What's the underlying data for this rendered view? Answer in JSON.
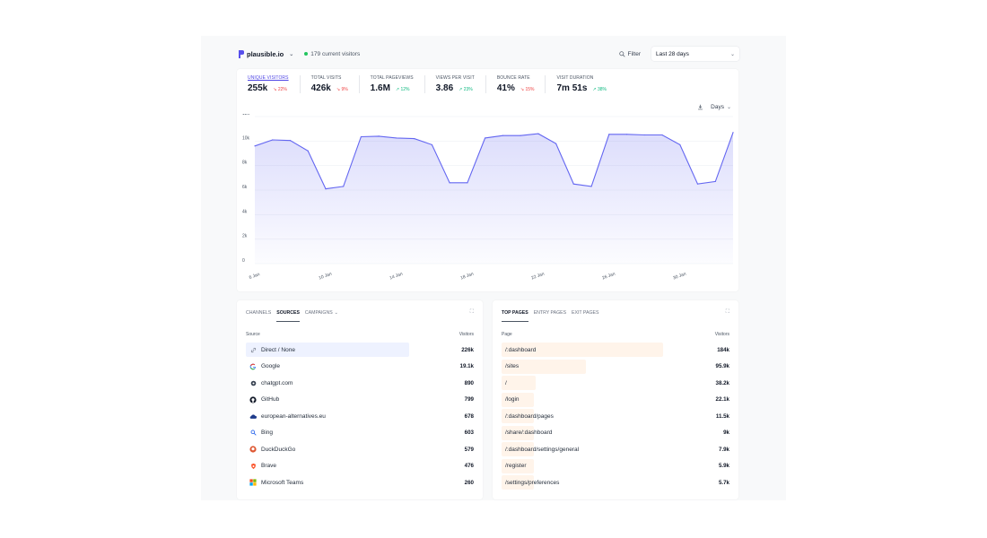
{
  "header": {
    "site": "plausible.io",
    "current_visitors": "179 current visitors",
    "filter_label": "Filter",
    "range_label": "Last 28 days"
  },
  "metrics": [
    {
      "label": "UNIQUE VISITORS",
      "value": "255k",
      "change": "22%",
      "direction": "down",
      "active": true
    },
    {
      "label": "TOTAL VISITS",
      "value": "426k",
      "change": "9%",
      "direction": "down"
    },
    {
      "label": "TOTAL PAGEVIEWS",
      "value": "1.6M",
      "change": "12%",
      "direction": "up"
    },
    {
      "label": "VIEWS PER VISIT",
      "value": "3.86",
      "change": "23%",
      "direction": "up"
    },
    {
      "label": "BOUNCE RATE",
      "value": "41%",
      "change": "15%",
      "direction": "down"
    },
    {
      "label": "VISIT DURATION",
      "value": "7m 51s",
      "change": "38%",
      "direction": "up"
    }
  ],
  "interval_label": "Days",
  "colors": {
    "accent": "#6366f1",
    "up": "#10b981",
    "down": "#ef4444",
    "live": "#22c55e"
  },
  "chart_data": {
    "type": "area",
    "y_ticks": [
      "0",
      "2k",
      "4k",
      "6k",
      "8k",
      "10k",
      "12k"
    ],
    "ylim": [
      0,
      12000
    ],
    "x_ticks": [
      "6 Jan",
      "10 Jan",
      "14 Jan",
      "18 Jan",
      "22 Jan",
      "26 Jan",
      "30 Jan"
    ],
    "x": [
      "6 Jan",
      "7 Jan",
      "8 Jan",
      "9 Jan",
      "10 Jan",
      "11 Jan",
      "12 Jan",
      "13 Jan",
      "14 Jan",
      "15 Jan",
      "16 Jan",
      "17 Jan",
      "18 Jan",
      "19 Jan",
      "20 Jan",
      "21 Jan",
      "22 Jan",
      "23 Jan",
      "24 Jan",
      "25 Jan",
      "26 Jan",
      "27 Jan",
      "28 Jan",
      "29 Jan",
      "30 Jan",
      "31 Jan",
      "1 Feb",
      "2 Feb"
    ],
    "series": [
      {
        "values": [
          9600,
          10100,
          10050,
          9200,
          6100,
          6300,
          10350,
          10400,
          10250,
          10200,
          9700,
          6600,
          6600,
          10250,
          10450,
          10450,
          10600,
          9800,
          6500,
          6300,
          10550,
          10550,
          10500,
          10500,
          9700,
          6500,
          6700,
          10700
        ]
      }
    ],
    "grid": true
  },
  "sources": {
    "tabs": [
      "CHANNELS",
      "SOURCES",
      "CAMPAIGNS"
    ],
    "active_tab": "SOURCES",
    "col_source": "Source",
    "col_visitors": "Visitors",
    "rows": [
      {
        "label": "Direct / None",
        "value": "226k",
        "icon": "link-icon",
        "ratio": 1.0
      },
      {
        "label": "Google",
        "value": "19.1k",
        "icon": "google-icon",
        "ratio": 0.085
      },
      {
        "label": "chatgpt.com",
        "value": "890",
        "icon": "chatgpt-icon",
        "ratio": 0.004
      },
      {
        "label": "GitHub",
        "value": "799",
        "icon": "github-icon",
        "ratio": 0.0035
      },
      {
        "label": "european-alternatives.eu",
        "value": "678",
        "icon": "cloud-icon",
        "ratio": 0.003
      },
      {
        "label": "Bing",
        "value": "603",
        "icon": "bing-icon",
        "ratio": 0.0027
      },
      {
        "label": "DuckDuckGo",
        "value": "579",
        "icon": "duckduckgo-icon",
        "ratio": 0.0026
      },
      {
        "label": "Brave",
        "value": "476",
        "icon": "brave-icon",
        "ratio": 0.0021
      },
      {
        "label": "Microsoft Teams",
        "value": "260",
        "icon": "teams-icon",
        "ratio": 0.0012
      }
    ]
  },
  "pages": {
    "tabs": [
      "TOP PAGES",
      "ENTRY PAGES",
      "EXIT PAGES"
    ],
    "active_tab": "TOP PAGES",
    "col_page": "Page",
    "col_visitors": "Visitors",
    "rows": [
      {
        "label": "/:dashboard",
        "value": "184k",
        "ratio": 1.0
      },
      {
        "label": "/sites",
        "value": "95.9k",
        "ratio": 0.52
      },
      {
        "label": "/",
        "value": "38.2k",
        "ratio": 0.21
      },
      {
        "label": "/login",
        "value": "22.1k",
        "ratio": 0.12
      },
      {
        "label": "/:dashboard/pages",
        "value": "11.5k",
        "ratio": 0.0625
      },
      {
        "label": "/share/:dashboard",
        "value": "9k",
        "ratio": 0.049
      },
      {
        "label": "/:dashboard/settings/general",
        "value": "7.9k",
        "ratio": 0.043
      },
      {
        "label": "/register",
        "value": "5.9k",
        "ratio": 0.032
      },
      {
        "label": "/settings/preferences",
        "value": "5.7k",
        "ratio": 0.031
      }
    ]
  }
}
